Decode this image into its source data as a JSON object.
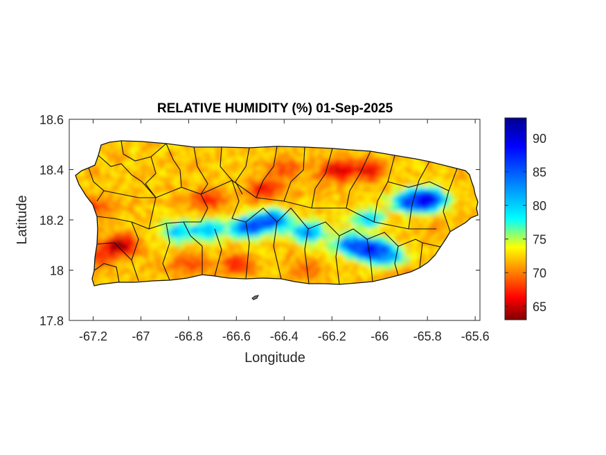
{
  "chart_data": {
    "type": "heatmap",
    "title": "RELATIVE HUMIDITY (%) 01-Sep-2025",
    "xlabel": "Longitude",
    "ylabel": "Latitude",
    "xlim": [
      -67.3,
      -65.58
    ],
    "ylim": [
      17.8,
      18.6
    ],
    "xticks": [
      -67.2,
      -67,
      -66.8,
      -66.6,
      -66.4,
      -66.2,
      -66,
      -65.8,
      -65.6
    ],
    "yticks": [
      17.8,
      18,
      18.2,
      18.4,
      18.6
    ],
    "xtick_labels": [
      "-67.2",
      "-67",
      "-66.8",
      "-66.6",
      "-66.4",
      "-66.2",
      "-66",
      "-65.8",
      "-65.6"
    ],
    "ytick_labels": [
      "17.8",
      "18",
      "18.2",
      "18.4",
      "18.6"
    ],
    "colorbar": {
      "colormap": "jet",
      "range": [
        63,
        93
      ],
      "ticks": [
        65,
        70,
        75,
        80,
        85,
        90
      ],
      "tick_labels": [
        "65",
        "70",
        "75",
        "80",
        "85",
        "90"
      ],
      "colors": [
        "#7f0000",
        "#ff0000",
        "#ffff00",
        "#00ffff",
        "#0000ff",
        "#00008f"
      ]
    },
    "region": "Puerto Rico",
    "base_humidity": 72,
    "features": [
      {
        "lon": -66.55,
        "lat": 18.17,
        "value": 86
      },
      {
        "lon": -66.45,
        "lat": 18.2,
        "value": 86
      },
      {
        "lon": -66.72,
        "lat": 18.16,
        "value": 81
      },
      {
        "lon": -66.85,
        "lat": 18.15,
        "value": 80
      },
      {
        "lon": -66.3,
        "lat": 18.15,
        "value": 83
      },
      {
        "lon": -66.12,
        "lat": 18.1,
        "value": 84
      },
      {
        "lon": -66.03,
        "lat": 18.08,
        "value": 88
      },
      {
        "lon": -65.96,
        "lat": 18.05,
        "value": 82
      },
      {
        "lon": -66.05,
        "lat": 18.2,
        "value": 80
      },
      {
        "lon": -65.8,
        "lat": 18.28,
        "value": 91
      },
      {
        "lon": -65.88,
        "lat": 18.27,
        "value": 84
      },
      {
        "lon": -66.18,
        "lat": 18.4,
        "value": 65
      },
      {
        "lon": -66.05,
        "lat": 18.4,
        "value": 66
      },
      {
        "lon": -66.48,
        "lat": 18.32,
        "value": 66
      },
      {
        "lon": -66.72,
        "lat": 18.28,
        "value": 67
      },
      {
        "lon": -67.08,
        "lat": 18.1,
        "value": 64
      },
      {
        "lon": -67.17,
        "lat": 18.05,
        "value": 67
      },
      {
        "lon": -66.6,
        "lat": 18.02,
        "value": 67
      },
      {
        "lon": -66.8,
        "lat": 18.02,
        "value": 68
      },
      {
        "lon": -66.4,
        "lat": 18.4,
        "value": 68
      },
      {
        "lon": -67.2,
        "lat": 18.25,
        "value": 68
      },
      {
        "lon": -66.3,
        "lat": 18.0,
        "value": 69
      },
      {
        "lon": -65.9,
        "lat": 18.0,
        "value": 70
      },
      {
        "lon": -65.75,
        "lat": 18.15,
        "value": 71
      }
    ]
  }
}
